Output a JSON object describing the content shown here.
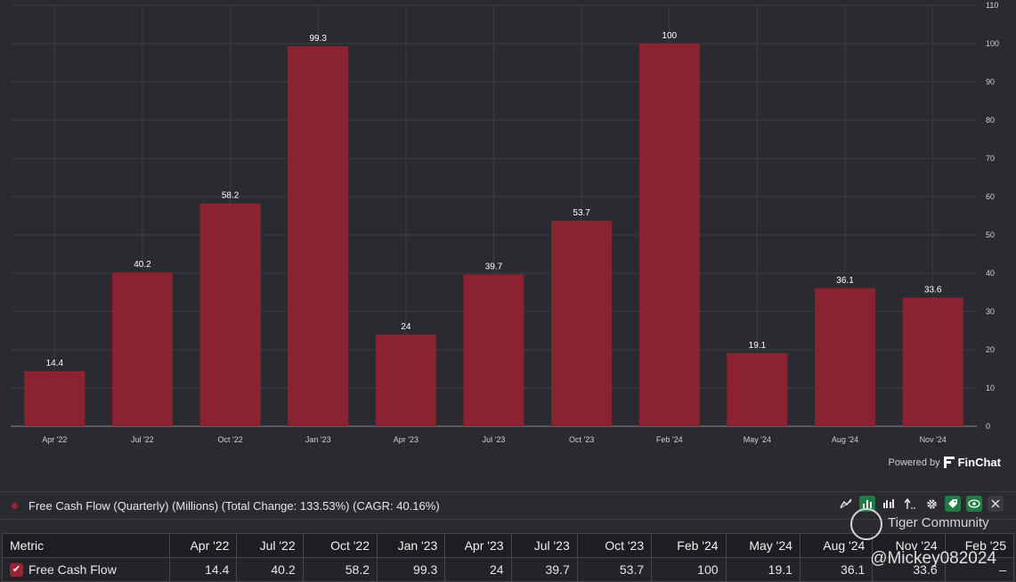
{
  "chart_data": {
    "type": "bar",
    "title": "Free Cash Flow (Quarterly) (Millions)",
    "categories": [
      "Apr '22",
      "Jul '22",
      "Oct '22",
      "Jan '23",
      "Apr '23",
      "Jul '23",
      "Oct '23",
      "Feb '24",
      "May '24",
      "Aug '24",
      "Nov '24"
    ],
    "values": [
      14.4,
      40.2,
      58.2,
      99.3,
      24,
      39.7,
      53.7,
      100,
      19.1,
      36.1,
      33.6
    ],
    "value_labels": [
      "14.4",
      "40.2",
      "58.2",
      "99.3",
      "24",
      "39.7",
      "53.7",
      "100",
      "19.1",
      "36.1",
      "33.6"
    ],
    "ylim": [
      0,
      110
    ],
    "yticks": [
      0,
      10,
      20,
      30,
      40,
      50,
      60,
      70,
      80,
      90,
      100,
      110
    ],
    "grid": true,
    "bar_color": "#8b2232",
    "y_axis_side": "right"
  },
  "branding": {
    "powered_by": "Powered by",
    "brand": "FinChat"
  },
  "legend": {
    "dot_color": "#9b2233",
    "text": "Free Cash Flow (Quarterly) (Millions) (Total Change: 133.53%) (CAGR: 40.16%)"
  },
  "toolbar": {
    "icons": [
      "line-chart-icon",
      "bar-chart-icon",
      "grouped-bar-icon",
      "sort-icon",
      "gear-icon",
      "tag-icon",
      "eye-icon",
      "close-icon"
    ]
  },
  "table": {
    "header_label": "Metric",
    "columns": [
      "Apr '22",
      "Jul '22",
      "Oct '22",
      "Jan '23",
      "Apr '23",
      "Jul '23",
      "Oct '23",
      "Feb '24",
      "May '24",
      "Aug '24",
      "Nov '24",
      "Feb '25"
    ],
    "rows": [
      {
        "metric": "Free Cash Flow",
        "values": [
          "14.4",
          "40.2",
          "58.2",
          "99.3",
          "24",
          "39.7",
          "53.7",
          "100",
          "19.1",
          "36.1",
          "33.6",
          "–"
        ]
      }
    ]
  },
  "watermark": {
    "community": "Tiger Community",
    "handle": "@Mickey082024"
  }
}
